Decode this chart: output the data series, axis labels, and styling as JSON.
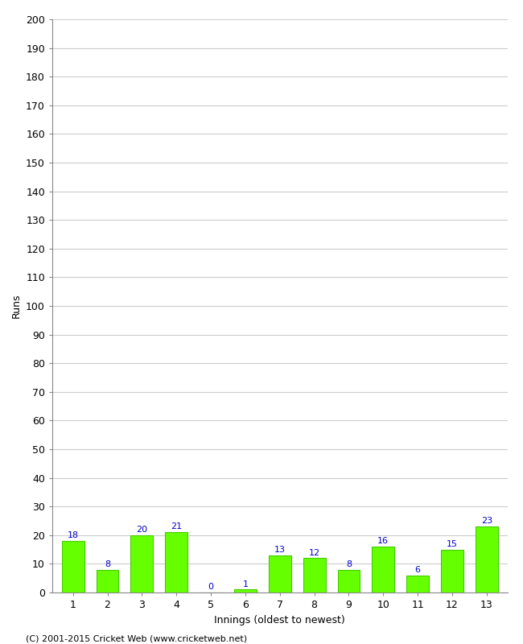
{
  "xlabel": "Innings (oldest to newest)",
  "ylabel": "Runs",
  "categories": [
    1,
    2,
    3,
    4,
    5,
    6,
    7,
    8,
    9,
    10,
    11,
    12,
    13
  ],
  "values": [
    18,
    8,
    20,
    21,
    0,
    1,
    13,
    12,
    8,
    16,
    6,
    15,
    23
  ],
  "bar_color": "#66ff00",
  "bar_edge_color": "#44cc00",
  "label_color": "#0000cc",
  "ylim": [
    0,
    200
  ],
  "yticks": [
    0,
    10,
    20,
    30,
    40,
    50,
    60,
    70,
    80,
    90,
    100,
    110,
    120,
    130,
    140,
    150,
    160,
    170,
    180,
    190,
    200
  ],
  "grid_color": "#cccccc",
  "background_color": "#ffffff",
  "footer_text": "(C) 2001-2015 Cricket Web (www.cricketweb.net)",
  "label_fontsize": 8,
  "axis_fontsize": 9,
  "footer_fontsize": 8,
  "spine_color": "#888888"
}
